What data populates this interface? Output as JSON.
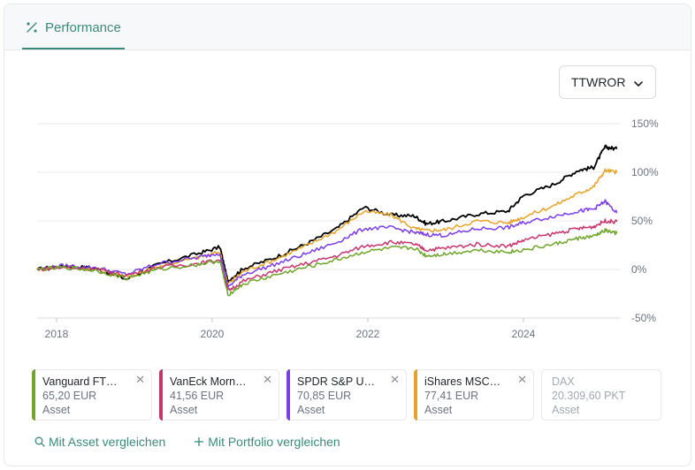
{
  "tabs": [
    {
      "label": "Performance",
      "icon": "percent-icon",
      "active": true
    }
  ],
  "metric_select": {
    "value": "TTWROR"
  },
  "chart_data": {
    "type": "line",
    "x_ticks": [
      "2018",
      "2020",
      "2022",
      "2024"
    ],
    "y_ticks": [
      "150%",
      "100%",
      "50%",
      "0%",
      "-50%"
    ],
    "ylim": [
      -50,
      150
    ],
    "xlim": [
      2017.75,
      2025.25
    ],
    "grid": true,
    "y_axis_side": "right",
    "series": [
      {
        "color": "#000000",
        "points": [
          [
            2017.75,
            0
          ],
          [
            2018.1,
            4
          ],
          [
            2018.5,
            1
          ],
          [
            2018.9,
            -10
          ],
          [
            2019.3,
            5
          ],
          [
            2019.8,
            16
          ],
          [
            2020.1,
            23
          ],
          [
            2020.2,
            -12
          ],
          [
            2020.4,
            1
          ],
          [
            2020.8,
            12
          ],
          [
            2021.2,
            26
          ],
          [
            2021.6,
            42
          ],
          [
            2021.95,
            64
          ],
          [
            2022.3,
            56
          ],
          [
            2022.6,
            55
          ],
          [
            2022.75,
            47
          ],
          [
            2023.0,
            50
          ],
          [
            2023.4,
            57
          ],
          [
            2023.8,
            60
          ],
          [
            2024.0,
            76
          ],
          [
            2024.4,
            88
          ],
          [
            2024.7,
            102
          ],
          [
            2024.9,
            105
          ],
          [
            2025.05,
            126
          ],
          [
            2025.2,
            124
          ]
        ]
      },
      {
        "color": "#e6a329",
        "points": [
          [
            2017.75,
            0
          ],
          [
            2018.1,
            3
          ],
          [
            2018.5,
            0
          ],
          [
            2018.9,
            -8
          ],
          [
            2019.3,
            3
          ],
          [
            2019.8,
            12
          ],
          [
            2020.1,
            18
          ],
          [
            2020.2,
            -15
          ],
          [
            2020.4,
            -2
          ],
          [
            2020.8,
            10
          ],
          [
            2021.2,
            24
          ],
          [
            2021.6,
            40
          ],
          [
            2021.95,
            60
          ],
          [
            2022.3,
            56
          ],
          [
            2022.6,
            42
          ],
          [
            2022.75,
            40
          ],
          [
            2023.0,
            41
          ],
          [
            2023.4,
            50
          ],
          [
            2023.8,
            48
          ],
          [
            2024.0,
            54
          ],
          [
            2024.4,
            66
          ],
          [
            2024.7,
            78
          ],
          [
            2024.9,
            85
          ],
          [
            2025.05,
            102
          ],
          [
            2025.2,
            100
          ]
        ]
      },
      {
        "color": "#7b3ee6",
        "points": [
          [
            2017.75,
            0
          ],
          [
            2018.1,
            4
          ],
          [
            2018.5,
            2
          ],
          [
            2018.9,
            -5
          ],
          [
            2019.3,
            6
          ],
          [
            2019.8,
            12
          ],
          [
            2020.1,
            17
          ],
          [
            2020.2,
            -18
          ],
          [
            2020.4,
            -5
          ],
          [
            2020.8,
            5
          ],
          [
            2021.2,
            16
          ],
          [
            2021.6,
            28
          ],
          [
            2021.95,
            42
          ],
          [
            2022.3,
            43
          ],
          [
            2022.6,
            38
          ],
          [
            2022.75,
            36
          ],
          [
            2023.0,
            35
          ],
          [
            2023.4,
            42
          ],
          [
            2023.8,
            43
          ],
          [
            2024.0,
            48
          ],
          [
            2024.4,
            55
          ],
          [
            2024.7,
            60
          ],
          [
            2024.9,
            62
          ],
          [
            2025.05,
            70
          ],
          [
            2025.2,
            58
          ]
        ]
      },
      {
        "color": "#c7356d",
        "points": [
          [
            2017.75,
            0
          ],
          [
            2018.1,
            2
          ],
          [
            2018.5,
            0
          ],
          [
            2018.9,
            -6
          ],
          [
            2019.3,
            2
          ],
          [
            2019.8,
            6
          ],
          [
            2020.1,
            10
          ],
          [
            2020.2,
            -22
          ],
          [
            2020.4,
            -12
          ],
          [
            2020.8,
            -2
          ],
          [
            2021.2,
            6
          ],
          [
            2021.6,
            14
          ],
          [
            2021.95,
            24
          ],
          [
            2022.3,
            28
          ],
          [
            2022.6,
            26
          ],
          [
            2022.75,
            20
          ],
          [
            2023.0,
            22
          ],
          [
            2023.4,
            26
          ],
          [
            2023.8,
            24
          ],
          [
            2024.0,
            30
          ],
          [
            2024.4,
            37
          ],
          [
            2024.7,
            42
          ],
          [
            2024.9,
            44
          ],
          [
            2025.05,
            50
          ],
          [
            2025.2,
            49
          ]
        ]
      },
      {
        "color": "#6ea52a",
        "points": [
          [
            2017.75,
            0
          ],
          [
            2018.1,
            2
          ],
          [
            2018.5,
            -1
          ],
          [
            2018.9,
            -9
          ],
          [
            2019.3,
            0
          ],
          [
            2019.8,
            5
          ],
          [
            2020.1,
            9
          ],
          [
            2020.2,
            -26
          ],
          [
            2020.4,
            -15
          ],
          [
            2020.8,
            -6
          ],
          [
            2021.2,
            2
          ],
          [
            2021.6,
            10
          ],
          [
            2021.95,
            18
          ],
          [
            2022.3,
            22
          ],
          [
            2022.6,
            22
          ],
          [
            2022.75,
            14
          ],
          [
            2023.0,
            16
          ],
          [
            2023.4,
            20
          ],
          [
            2023.8,
            18
          ],
          [
            2024.0,
            20
          ],
          [
            2024.4,
            26
          ],
          [
            2024.7,
            32
          ],
          [
            2024.9,
            34
          ],
          [
            2025.05,
            40
          ],
          [
            2025.2,
            37
          ]
        ]
      }
    ]
  },
  "legend": [
    {
      "name": "Vanguard FT…",
      "price": "65,20 EUR",
      "kind": "Asset",
      "color": "#6ea52a",
      "removable": true,
      "active": true
    },
    {
      "name": "VanEck Morn…",
      "price": "41,56 EUR",
      "kind": "Asset",
      "color": "#c7356d",
      "removable": true,
      "active": true
    },
    {
      "name": "SPDR S&P U…",
      "price": "70,85 EUR",
      "kind": "Asset",
      "color": "#7b3ee6",
      "removable": true,
      "active": true
    },
    {
      "name": "iShares MSC…",
      "price": "77,41 EUR",
      "kind": "Asset",
      "color": "#e6a329",
      "removable": true,
      "active": true
    },
    {
      "name": "DAX",
      "price": "20.309,60 PKT",
      "kind": "Asset",
      "color": "",
      "removable": false,
      "active": false
    }
  ],
  "actions": {
    "compare_asset": {
      "label": "Mit Asset vergleichen",
      "icon": "search-icon"
    },
    "compare_portfolio": {
      "label": "Mit Portfolio vergleichen",
      "icon": "plus-icon"
    }
  },
  "close_glyph": "✕"
}
